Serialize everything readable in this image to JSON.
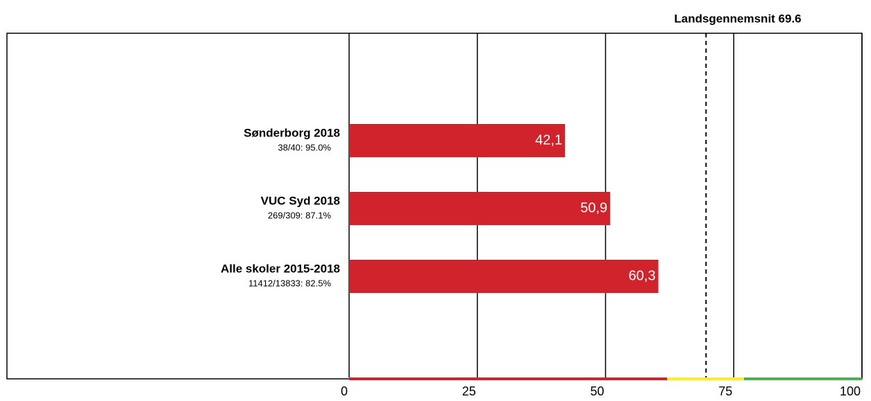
{
  "chart_data": {
    "type": "hbar",
    "categories": [
      "Sønderborg 2018",
      "VUC Syd 2018",
      "Alle skoler 2015-2018"
    ],
    "sublabels": [
      "38/40: 95.0%",
      "269/309: 87.1%",
      "11412/13833: 82.5%"
    ],
    "values": [
      42.1,
      50.9,
      60.3
    ],
    "value_labels": [
      "42,1",
      "50,9",
      "60,3"
    ],
    "color": "#d0232b",
    "xlim": [
      0,
      100
    ],
    "xticks": [
      0,
      25,
      50,
      75,
      100
    ],
    "grid": true,
    "reference_line": {
      "value": 69.6,
      "label": "Landsgennemsnit 69.6"
    },
    "bands": [
      {
        "from": 0,
        "to": 62,
        "color": "#d0232b"
      },
      {
        "from": 62,
        "to": 77,
        "color": "#ffee22"
      },
      {
        "from": 77,
        "to": 100,
        "color": "#4caf50"
      }
    ]
  }
}
